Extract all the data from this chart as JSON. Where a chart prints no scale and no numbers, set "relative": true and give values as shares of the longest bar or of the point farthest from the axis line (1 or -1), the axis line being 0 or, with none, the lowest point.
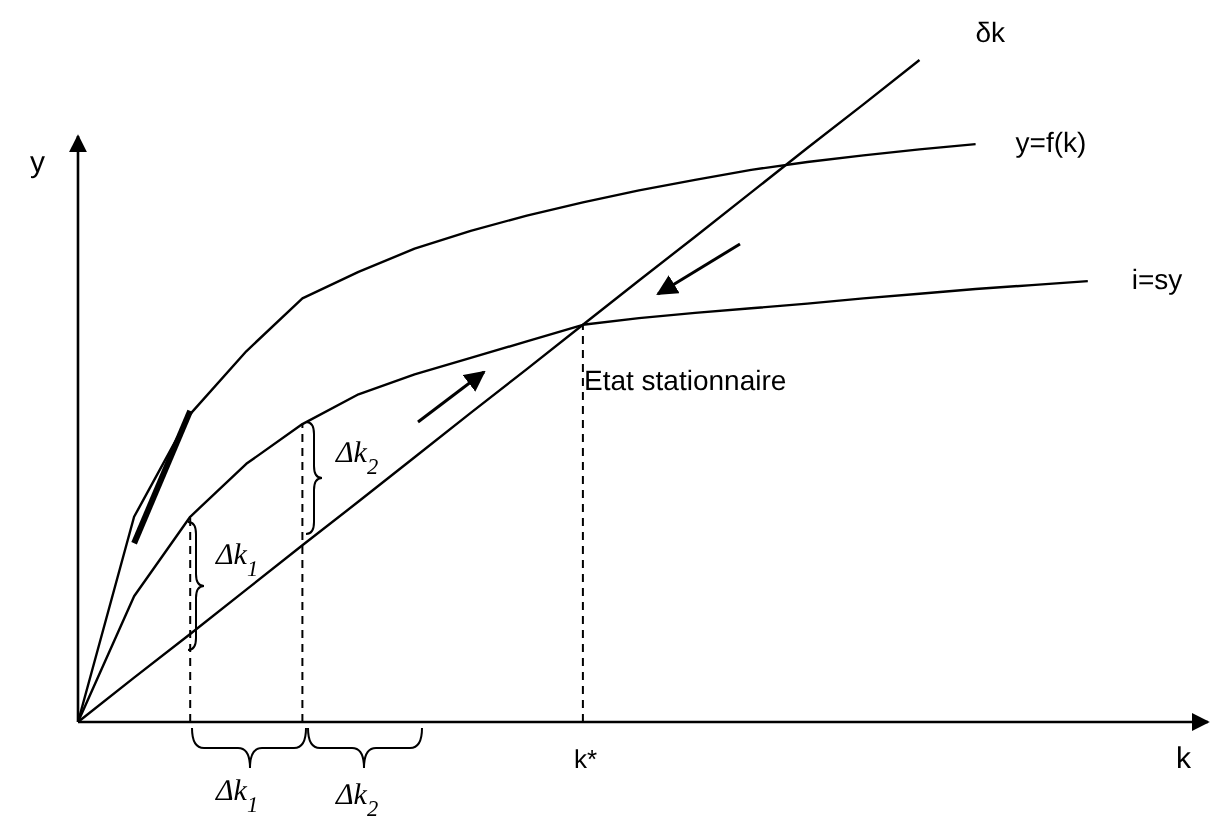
{
  "chart_data": {
    "type": "line",
    "relative": true,
    "xlabel": "k",
    "ylabel": "y",
    "marker": "none",
    "line_style": "solid",
    "categories": [
      null,
      null,
      null,
      null,
      null,
      null,
      null,
      null,
      null,
      null,
      null,
      null,
      null,
      null,
      null,
      null,
      null,
      null,
      null
    ],
    "series": [
      {
        "name": "y=f(k)",
        "color": "#000000",
        "values": [
          0,
          0.31,
          0.465,
          0.56,
          0.64,
          0.68,
          0.715,
          0.742,
          0.765,
          0.785,
          0.803,
          0.819,
          0.834,
          0.846,
          0.856,
          0.865,
          0.873,
          null,
          null
        ]
      },
      {
        "name": "i=sy",
        "color": "#000000",
        "values": [
          0,
          0.19,
          0.31,
          0.39,
          0.45,
          0.495,
          0.525,
          0.55,
          0.575,
          0.6,
          0.61,
          0.618,
          0.625,
          0.632,
          0.64,
          0.647,
          0.654,
          0.66,
          0.666
        ]
      },
      {
        "name": "δk",
        "color": "#000000",
        "values": [
          0,
          0.067,
          0.133,
          0.2,
          0.267,
          0.333,
          0.4,
          0.467,
          0.533,
          0.6,
          0.667,
          0.733,
          0.8,
          0.867,
          0.933,
          1,
          null,
          null,
          null
        ]
      },
      {
        "color": "#000000",
        "values": [
          null,
          0.27,
          0.47,
          null,
          null,
          null,
          null,
          null,
          null,
          null,
          null,
          null,
          null,
          null,
          null,
          null,
          null,
          null,
          null
        ]
      }
    ],
    "annotations": [
      "Etat stationnaire",
      "k*",
      "Δk$_{1}$",
      "Δk$_{2}$",
      "Δk$_{1}$",
      "Δk$_{2}$"
    ]
  }
}
